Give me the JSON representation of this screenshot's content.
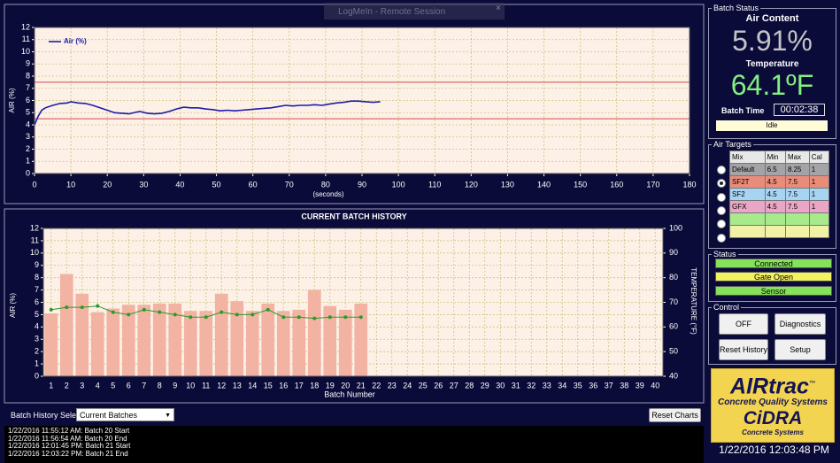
{
  "remote_title": "LogMeIn - Remote Session",
  "air_chart": {
    "type": "line",
    "legend": "Air (%)",
    "legend_loc": "upper left",
    "y_label": "AIR (%)",
    "x_label": "(seconds)",
    "color": "#1c1ca8",
    "grid": true,
    "x": [
      0,
      1,
      2,
      3,
      5,
      7,
      9,
      10,
      12,
      14,
      16,
      18,
      20,
      22,
      24,
      26,
      28,
      29,
      31,
      33,
      35,
      37,
      39,
      41,
      43,
      45,
      47,
      49,
      51,
      53,
      55,
      57,
      59,
      61,
      63,
      65,
      67,
      69,
      71,
      73,
      75,
      77,
      79,
      81,
      83,
      85,
      87,
      89,
      91,
      93,
      95
    ],
    "values": [
      4.0,
      4.7,
      5.2,
      5.4,
      5.6,
      5.75,
      5.8,
      5.9,
      5.8,
      5.75,
      5.6,
      5.4,
      5.2,
      5.0,
      4.95,
      4.9,
      5.05,
      5.1,
      4.95,
      4.9,
      4.95,
      5.1,
      5.3,
      5.45,
      5.4,
      5.4,
      5.3,
      5.25,
      5.15,
      5.2,
      5.15,
      5.2,
      5.25,
      5.3,
      5.35,
      5.4,
      5.5,
      5.6,
      5.55,
      5.6,
      5.6,
      5.65,
      5.6,
      5.7,
      5.8,
      5.85,
      5.95,
      5.95,
      5.9,
      5.85,
      5.9
    ],
    "limits": [
      7.5,
      4.5
    ],
    "limit_color": "#d04848",
    "xlim": [
      0,
      180
    ],
    "xticks": [
      0,
      10,
      20,
      30,
      40,
      50,
      60,
      70,
      80,
      90,
      100,
      110,
      120,
      130,
      140,
      150,
      160,
      170,
      180
    ],
    "ylim": [
      0,
      12
    ],
    "yticks": [
      0,
      1,
      2,
      3,
      4,
      5,
      6,
      7,
      8,
      9,
      10,
      11,
      12
    ]
  },
  "history_chart": {
    "type": "bar",
    "title": "CURRENT BATCH HISTORY",
    "y_label": "AIR (%)",
    "y2_label": "TEMPERATURE (°F)",
    "x_label": "Batch Number",
    "grid": true,
    "categories": [
      1,
      2,
      3,
      4,
      5,
      6,
      7,
      8,
      9,
      10,
      11,
      12,
      13,
      14,
      15,
      16,
      17,
      18,
      19,
      20,
      21,
      22,
      23,
      24,
      25,
      26,
      27,
      28,
      29,
      30,
      31,
      32,
      33,
      34,
      35,
      36,
      37,
      38,
      39,
      40
    ],
    "series": [
      {
        "color": "#f2b3a3",
        "values": [
          5.1,
          8.3,
          6.7,
          5.2,
          5.5,
          5.8,
          5.8,
          5.9,
          5.9,
          5.3,
          5.3,
          6.7,
          6.1,
          5.3,
          5.9,
          5.3,
          5.4,
          7.0,
          5.7,
          5.4,
          5.9,
          null,
          null,
          null,
          null,
          null,
          null,
          null,
          null,
          null,
          null,
          null,
          null,
          null,
          null,
          null,
          null,
          null,
          null,
          null
        ]
      },
      {
        "color": "#2a9a2a",
        "axis": "y2",
        "values": [
          67,
          68,
          68,
          68.5,
          66,
          65,
          67,
          66,
          65,
          64,
          64,
          66,
          65,
          65,
          67,
          64,
          64,
          63.5,
          64,
          64,
          64,
          null,
          null,
          null,
          null,
          null,
          null,
          null,
          null,
          null,
          null,
          null,
          null,
          null,
          null,
          null,
          null,
          null,
          null,
          null
        ]
      }
    ],
    "ylim": [
      0,
      12
    ],
    "yticks": [
      0,
      1,
      2,
      3,
      4,
      5,
      6,
      7,
      8,
      9,
      10,
      11,
      12
    ],
    "y2lim": [
      40,
      100
    ],
    "y2ticks": [
      40,
      50,
      60,
      70,
      80,
      90,
      100
    ]
  },
  "history_select": {
    "label": "Batch History Select:",
    "value": "Current Batches"
  },
  "reset_charts": "Reset Charts",
  "log": [
    "1/22/2016 11:55:12 AM: Batch 20 Start",
    "1/22/2016 11:56:54 AM: Batch 20 End",
    "1/22/2016 12:01:45 PM: Batch 21 Start",
    "1/22/2016 12:03:22 PM: Batch 21 End"
  ],
  "batch_status": {
    "label": "Batch Status",
    "air_label": "Air Content",
    "air_value": "5.91%",
    "temp_label": "Temperature",
    "temp_value": "64.1ºF",
    "time_label": "Batch Time",
    "time_value": "00:02:38",
    "state": "Idle"
  },
  "air_targets": {
    "label": "Air Targets",
    "headers": [
      "Mix",
      "Min",
      "Max",
      "Cal"
    ],
    "selected": 1,
    "rows": [
      [
        "Default",
        6.5,
        8.25,
        1
      ],
      [
        "SF2T",
        4.5,
        7.5,
        1
      ],
      [
        "SF2",
        4.5,
        7.5,
        1
      ],
      [
        "GFX",
        4.5,
        7.5,
        1
      ]
    ]
  },
  "status": {
    "label": "Status",
    "items": [
      "Connected",
      "Gate Open",
      "Sensor"
    ]
  },
  "control": {
    "label": "Control",
    "buttons": [
      "OFF",
      "Diagnostics",
      "Reset History",
      "Setup"
    ]
  },
  "logo": {
    "brand": "AIRtrac",
    "tm": "™",
    "tagline": "Concrete Quality Systems",
    "company": "CiDRA",
    "company_tagline": "Concrete Systems"
  },
  "datetime": "1/22/2016 12:03:48 PM"
}
